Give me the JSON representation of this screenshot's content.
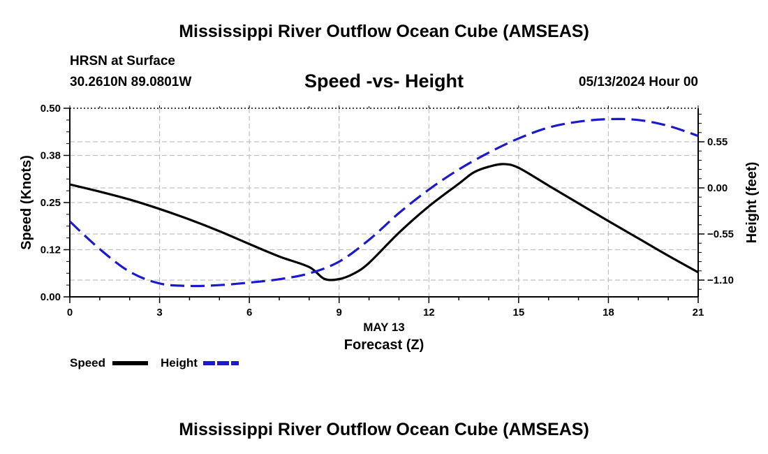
{
  "header": {
    "title": "Mississippi River Outflow Ocean Cube (AMSEAS)",
    "station": "HRSN at Surface",
    "coords": "30.2610N  89.0801W",
    "datetime": "05/13/2024 Hour 00",
    "bottom_title": "Mississippi River Outflow Ocean Cube (AMSEAS)"
  },
  "colors": {
    "speed": "#000000",
    "height": "#1a1acc",
    "grid": "#c0c0c0"
  },
  "chart_data": {
    "type": "line",
    "title": "Speed -vs- Height",
    "xlabel": "Forecast (Z)",
    "xlabel_date": "MAY 13",
    "ylabel": "Speed (Knots)",
    "y2label": "Height (feet)",
    "xlim": [
      0,
      21
    ],
    "ylim": [
      0,
      0.5
    ],
    "y2lim": [
      -1.3,
      0.95
    ],
    "x_ticks": [
      0,
      3,
      6,
      9,
      12,
      15,
      18,
      21
    ],
    "x_tick_labels": [
      "0",
      "3",
      "6",
      "9",
      "12",
      "15",
      "18",
      "21"
    ],
    "y_ticks": [
      0,
      0.125,
      0.25,
      0.375,
      0.5
    ],
    "y_tick_labels": [
      "0.00",
      "0.12",
      "0.25",
      "0.38",
      "0.50"
    ],
    "y2_ticks": [
      -1.1,
      -0.55,
      0.0,
      0.55
    ],
    "y2_tick_labels": [
      "−1.10",
      "−0.55",
      "0.00",
      "0.55"
    ],
    "grid": true,
    "legend": "bottom-left",
    "series": [
      {
        "name": "Speed",
        "axis": "left",
        "style": "solid",
        "x": [
          0,
          1,
          2,
          3,
          4,
          5,
          6,
          7,
          8,
          8.5,
          9,
          9.5,
          10,
          11,
          12,
          13,
          13.5,
          14,
          14.5,
          15,
          16,
          17,
          18,
          19,
          20,
          21
        ],
        "y": [
          0.298,
          0.279,
          0.258,
          0.233,
          0.205,
          0.174,
          0.14,
          0.107,
          0.079,
          0.048,
          0.047,
          0.062,
          0.09,
          0.17,
          0.24,
          0.3,
          0.33,
          0.345,
          0.352,
          0.342,
          0.295,
          0.248,
          0.201,
          0.155,
          0.109,
          0.065
        ]
      },
      {
        "name": "Height",
        "axis": "right",
        "style": "dashed",
        "x": [
          0,
          1,
          2,
          3,
          4,
          5,
          6,
          7,
          8,
          9,
          10,
          11,
          12,
          13,
          14,
          15,
          16,
          17,
          18,
          19,
          20,
          21
        ],
        "y": [
          -0.4,
          -0.73,
          -1.0,
          -1.14,
          -1.17,
          -1.16,
          -1.13,
          -1.09,
          -1.02,
          -0.88,
          -0.62,
          -0.3,
          -0.02,
          0.22,
          0.42,
          0.59,
          0.72,
          0.79,
          0.82,
          0.81,
          0.74,
          0.62
        ]
      }
    ]
  }
}
